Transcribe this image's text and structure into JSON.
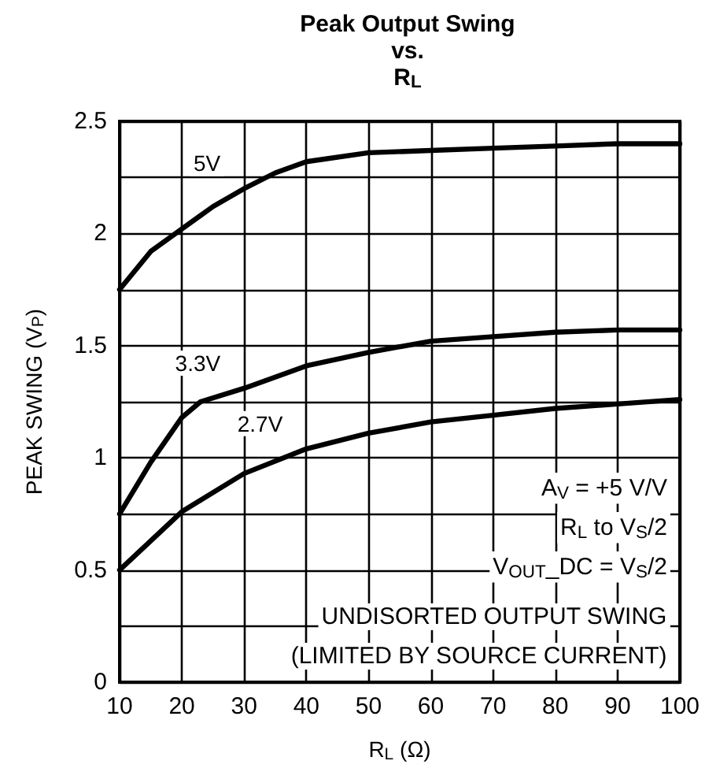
{
  "chart_data": {
    "type": "line",
    "title": "Peak Output Swing\nvs.\nR$_{L}$",
    "xlabel": "R$_{L}$ (Ω)",
    "ylabel": "PEAK SWING (V$_{P}$)",
    "annotations": [
      "A$_{V}$ = +5 V/V",
      "R$_{L}$ to V$_{S}$/2",
      "V$_{OUT}$_DC = V$_{S}$/2",
      "UNDISORTED OUTPUT SWING",
      "(LIMITED BY SOURCE CURRENT)"
    ],
    "series": [
      {
        "name": "5V",
        "color": "#000000",
        "x": [
          10,
          15,
          20,
          25,
          30,
          35,
          40,
          50,
          60,
          70,
          80,
          90,
          100
        ],
        "values": [
          1.75,
          1.92,
          2.02,
          2.12,
          2.2,
          2.27,
          2.32,
          2.36,
          2.37,
          2.38,
          2.39,
          2.4,
          2.4
        ]
      },
      {
        "name": "3.3V",
        "color": "#000000",
        "x": [
          10,
          15,
          20,
          23,
          30,
          40,
          50,
          60,
          70,
          80,
          90,
          100
        ],
        "values": [
          0.75,
          0.98,
          1.18,
          1.25,
          1.31,
          1.41,
          1.47,
          1.52,
          1.54,
          1.56,
          1.57,
          1.57
        ]
      },
      {
        "name": "2.7V",
        "color": "#000000",
        "x": [
          10,
          20,
          30,
          40,
          50,
          60,
          70,
          80,
          90,
          100
        ],
        "values": [
          0.5,
          0.76,
          0.93,
          1.04,
          1.11,
          1.16,
          1.19,
          1.22,
          1.24,
          1.26
        ]
      }
    ],
    "xlim": [
      10,
      100
    ],
    "xticks": [
      10,
      20,
      30,
      40,
      50,
      60,
      70,
      80,
      90,
      100
    ],
    "ylim": [
      0,
      2.5
    ],
    "yticks": [
      0,
      {
        "value": 0.25,
        "label": null
      },
      0.5,
      {
        "value": 0.75,
        "label": null
      },
      1,
      {
        "value": 1.25,
        "label": null
      },
      1.5,
      {
        "value": 1.75,
        "label": null
      },
      2,
      {
        "value": 2.25,
        "label": null
      },
      2.5
    ],
    "grid": true,
    "legend": false,
    "marker": "none",
    "line_style": "solid"
  }
}
